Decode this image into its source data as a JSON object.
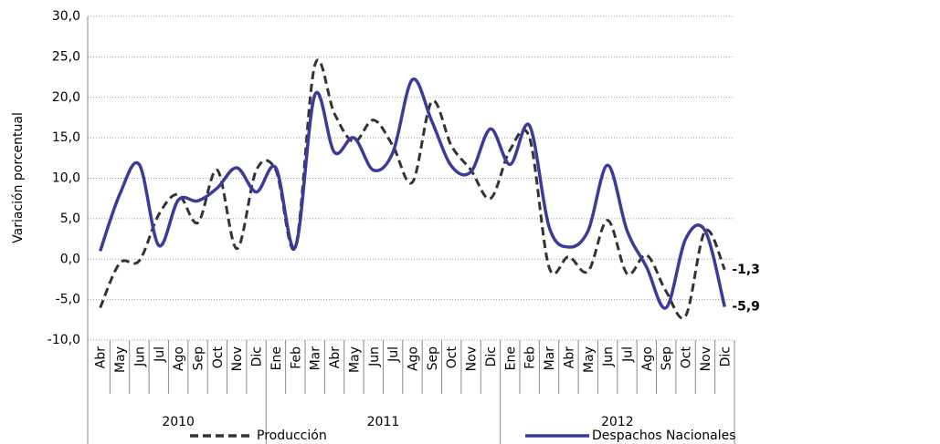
{
  "chart_data": {
    "type": "line",
    "y_label": "Variación porcentual",
    "groups": [
      {
        "label": "2010",
        "categories": [
          "Abr",
          "May",
          "Jun",
          "Jul",
          "Ago",
          "Sep",
          "Oct",
          "Nov",
          "Dic"
        ]
      },
      {
        "label": "2011",
        "categories": [
          "Ene",
          "Feb",
          "Mar",
          "Abr",
          "May",
          "Jun",
          "Jul",
          "Ago",
          "Sep",
          "Oct",
          "Nov",
          "Dic"
        ]
      },
      {
        "label": "2012",
        "categories": [
          "Ene",
          "Feb",
          "Mar",
          "Abr",
          "May",
          "Jun",
          "Jul",
          "Ago",
          "Sep",
          "Oct",
          "Nov",
          "Dic"
        ]
      }
    ],
    "series": [
      {
        "name": "Producción",
        "color": "#333333",
        "dash": true,
        "values": [
          -6,
          -0.5,
          -0.2,
          5.5,
          8,
          4.5,
          11,
          1.3,
          11,
          11,
          1.5,
          24,
          18,
          14.5,
          17.2,
          14,
          9.5,
          19.5,
          14,
          11,
          7.5,
          13.5,
          15,
          -1,
          0.3,
          -1.5,
          4.8,
          -1.8,
          0.5,
          -4,
          -7,
          3.5,
          -1.3
        ],
        "value_labels": [
          null,
          null,
          null,
          null,
          null,
          null,
          null,
          null,
          null,
          null,
          null,
          null,
          null,
          null,
          null,
          null,
          null,
          null,
          null,
          null,
          null,
          null,
          null,
          null,
          null,
          null,
          null,
          null,
          null,
          null,
          null,
          null,
          "-1,3"
        ]
      },
      {
        "name": "Despachos Nacionales",
        "color": "#3b3b9a",
        "dash": false,
        "values": [
          1,
          8,
          11.7,
          1.7,
          7.3,
          7.2,
          8.8,
          11.3,
          8.3,
          11.3,
          1.5,
          20.3,
          13.2,
          15,
          11,
          13.2,
          22.2,
          17,
          11.5,
          10.8,
          16.1,
          11.7,
          16.5,
          4,
          1.5,
          3.5,
          11.6,
          3.5,
          -1,
          -6,
          2.5,
          3.5,
          -5.9
        ],
        "value_labels": [
          null,
          null,
          null,
          null,
          null,
          null,
          null,
          null,
          null,
          null,
          null,
          null,
          null,
          null,
          null,
          null,
          null,
          null,
          null,
          null,
          null,
          null,
          null,
          null,
          null,
          null,
          null,
          null,
          null,
          null,
          null,
          null,
          "-5,9"
        ]
      }
    ],
    "ylim": [
      -10,
      30
    ],
    "yticks": [
      {
        "value": -10,
        "label": "-10,0"
      },
      {
        "value": -5,
        "label": "-5,0"
      },
      {
        "value": 0,
        "label": "0,0"
      },
      {
        "value": 5,
        "label": "5,0"
      },
      {
        "value": 10,
        "label": "10,0"
      },
      {
        "value": 15,
        "label": "15,0"
      },
      {
        "value": 20,
        "label": "20,0"
      },
      {
        "value": 25,
        "label": "25,0"
      },
      {
        "value": 30,
        "label": "30,0"
      }
    ],
    "grid": true
  }
}
